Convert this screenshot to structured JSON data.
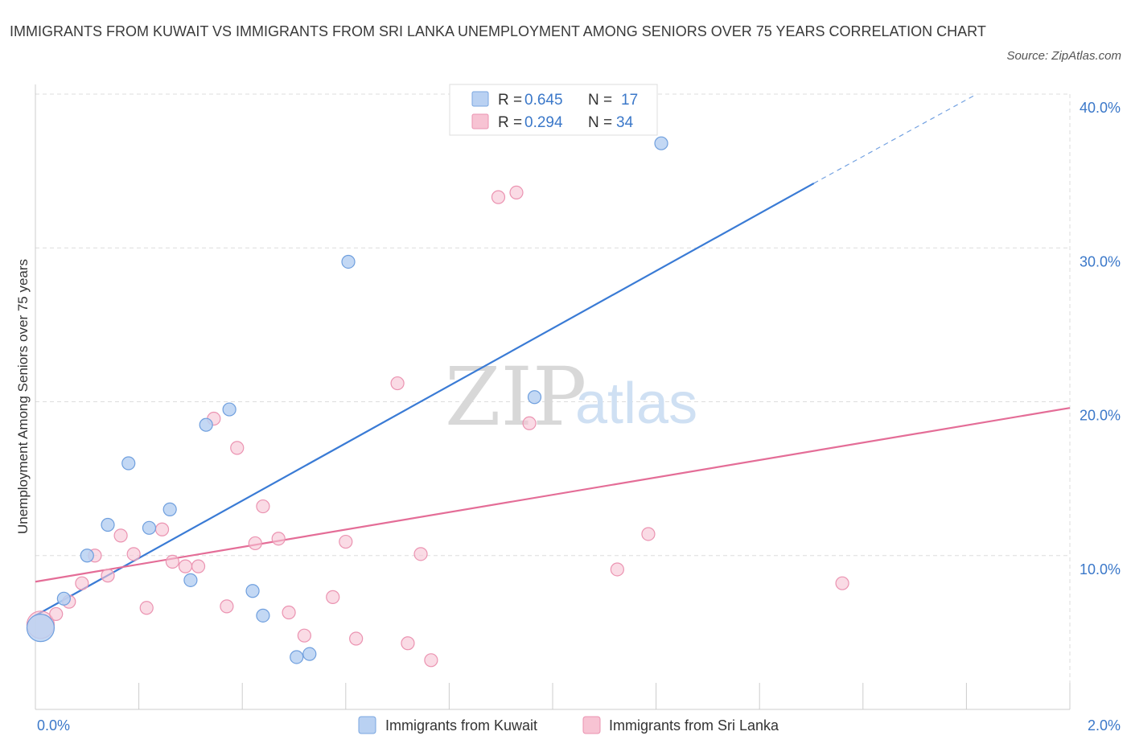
{
  "title": "IMMIGRANTS FROM KUWAIT VS IMMIGRANTS FROM SRI LANKA UNEMPLOYMENT AMONG SENIORS OVER 75 YEARS CORRELATION CHART",
  "source": "Source: ZipAtlas.com",
  "watermark": {
    "zip": "ZIP",
    "atlas": "atlas"
  },
  "colors": {
    "kuwait": "#3a7bd5",
    "kuwait_fill": "#b9d1f2",
    "srilanka": "#e46d97",
    "srilanka_fill": "#f7c3d3",
    "axis_text": "#3b78c9",
    "grid": "#dddddd"
  },
  "legend": {
    "rows": [
      {
        "r_label": "R = ",
        "r_value": "0.645",
        "n_label": "N = ",
        "n_value": "17"
      },
      {
        "r_label": "R = ",
        "r_value": "0.294",
        "n_label": "N = ",
        "n_value": "34"
      }
    ]
  },
  "bottom_legend": [
    "Immigrants from Kuwait",
    "Immigrants from Sri Lanka"
  ],
  "chart_data": {
    "type": "scatter",
    "title": "IMMIGRANTS FROM KUWAIT VS IMMIGRANTS FROM SRI LANKA UNEMPLOYMENT AMONG SENIORS OVER 75 YEARS CORRELATION CHART",
    "xlabel": "",
    "ylabel": "Unemployment Among Seniors over 75 years",
    "xlim": [
      0,
      2.0
    ],
    "ylim": [
      0,
      40
    ],
    "x_tick_labels": [
      "0.0%",
      "2.0%"
    ],
    "y_tick_values": [
      10,
      20,
      30,
      40
    ],
    "y_tick_labels": [
      "10.0%",
      "20.0%",
      "30.0%",
      "40.0%"
    ],
    "grid": true,
    "legend_position": "top-center",
    "series": [
      {
        "name": "Immigrants from Kuwait",
        "points": [
          {
            "x": 0.01,
            "y": 5.3,
            "size": "large"
          },
          {
            "x": 0.055,
            "y": 7.2
          },
          {
            "x": 0.1,
            "y": 10.0
          },
          {
            "x": 0.14,
            "y": 12.0
          },
          {
            "x": 0.18,
            "y": 16.0
          },
          {
            "x": 0.22,
            "y": 11.8
          },
          {
            "x": 0.26,
            "y": 13.0
          },
          {
            "x": 0.3,
            "y": 8.4
          },
          {
            "x": 0.33,
            "y": 18.5
          },
          {
            "x": 0.375,
            "y": 19.5
          },
          {
            "x": 0.42,
            "y": 7.7
          },
          {
            "x": 0.44,
            "y": 6.1
          },
          {
            "x": 0.505,
            "y": 3.4
          },
          {
            "x": 0.53,
            "y": 3.6
          },
          {
            "x": 0.605,
            "y": 29.1
          },
          {
            "x": 0.965,
            "y": 20.3
          },
          {
            "x": 1.21,
            "y": 36.8
          }
        ],
        "trend": {
          "x0": 0.0,
          "y0": 6.1,
          "x1": 1.505,
          "y1": 34.2,
          "dashed_to_x": 1.82,
          "dashed_to_y": 40.0
        }
      },
      {
        "name": "Immigrants from Sri Lanka",
        "points": [
          {
            "x": 0.01,
            "y": 5.5,
            "size": "large"
          },
          {
            "x": 0.04,
            "y": 6.2
          },
          {
            "x": 0.065,
            "y": 7.0
          },
          {
            "x": 0.09,
            "y": 8.2
          },
          {
            "x": 0.115,
            "y": 10.0
          },
          {
            "x": 0.14,
            "y": 8.7
          },
          {
            "x": 0.165,
            "y": 11.3
          },
          {
            "x": 0.19,
            "y": 10.1
          },
          {
            "x": 0.215,
            "y": 6.6
          },
          {
            "x": 0.245,
            "y": 11.7
          },
          {
            "x": 0.265,
            "y": 9.6
          },
          {
            "x": 0.29,
            "y": 9.3
          },
          {
            "x": 0.315,
            "y": 9.3
          },
          {
            "x": 0.345,
            "y": 18.9
          },
          {
            "x": 0.37,
            "y": 6.7
          },
          {
            "x": 0.39,
            "y": 17.0
          },
          {
            "x": 0.425,
            "y": 10.8
          },
          {
            "x": 0.44,
            "y": 13.2
          },
          {
            "x": 0.47,
            "y": 11.1
          },
          {
            "x": 0.49,
            "y": 6.3
          },
          {
            "x": 0.52,
            "y": 4.8
          },
          {
            "x": 0.575,
            "y": 7.3
          },
          {
            "x": 0.6,
            "y": 10.9
          },
          {
            "x": 0.62,
            "y": 4.6
          },
          {
            "x": 0.7,
            "y": 21.2
          },
          {
            "x": 0.72,
            "y": 4.3
          },
          {
            "x": 0.745,
            "y": 10.1
          },
          {
            "x": 0.765,
            "y": 3.2
          },
          {
            "x": 0.895,
            "y": 33.3
          },
          {
            "x": 0.93,
            "y": 33.6
          },
          {
            "x": 0.955,
            "y": 18.6
          },
          {
            "x": 1.125,
            "y": 9.1
          },
          {
            "x": 1.185,
            "y": 11.4
          },
          {
            "x": 1.56,
            "y": 8.2
          }
        ],
        "trend": {
          "x0": 0.0,
          "y0": 8.3,
          "x1": 2.0,
          "y1": 19.6
        }
      }
    ]
  }
}
